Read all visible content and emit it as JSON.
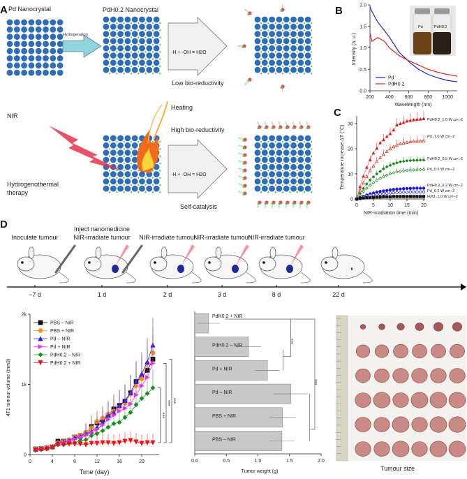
{
  "panels": {
    "a": "A",
    "b": "B",
    "c": "C",
    "d": "D"
  },
  "panel_a": {
    "pd_nanocrystal": "Pd Nanocrystal",
    "pdh_nanocrystal": "PdH0.2 Nanocrystal",
    "hydrogenation": "Hydrogenation",
    "reaction": "·H + ·OH = H2O",
    "low_bio": "Low bio-reductivity",
    "nir": "NIR",
    "heating": "Heating",
    "high_bio": "High bio-reductivity",
    "self_catalysis": "Self-catalysis",
    "therapy_line1": "Hydrogenothermal",
    "therapy_line2": "therapy",
    "colors": {
      "pd_atom": "#2f6db8",
      "h_atom": "#5cc45c",
      "o_atom": "#e2505a",
      "nir": "#e0203c"
    }
  },
  "panel_d": {
    "steps": [
      {
        "label1": "Inoculate tumour",
        "label2": "",
        "day": "−7 d"
      },
      {
        "label1": "Inject nanomedicine",
        "label2": "NIR-irradiate tumour",
        "day": "1 d"
      },
      {
        "label1": "NIR-irradiate tumour",
        "label2": "",
        "day": "2 d"
      },
      {
        "label1": "NIR-irradiate tumour",
        "label2": "",
        "day": "3 d"
      },
      {
        "label1": "NIR-irradiate tumour",
        "label2": "",
        "day": "8 d"
      },
      {
        "label1": "",
        "label2": "",
        "day": "22 d"
      }
    ]
  },
  "photo": {
    "caption": "Tumour size"
  },
  "chart_data": [
    {
      "id": "B",
      "type": "line",
      "xlabel": "Wavelength (nm)",
      "ylabel": "Intensity (a. u.)",
      "xlim": [
        200,
        1100
      ],
      "ylim": [
        0,
        2.0
      ],
      "xticks": [
        "200",
        "400",
        "600",
        "800",
        "1000"
      ],
      "yticks": [
        "0.0",
        "0.5",
        "1.0",
        "1.5",
        "2.0"
      ],
      "legend": "bottom-left",
      "inset_labels": [
        "Pd",
        "PdH0.2"
      ],
      "x": [
        200,
        220,
        280,
        350,
        400,
        500,
        600,
        700,
        800,
        900,
        1000,
        1100
      ],
      "series": [
        {
          "name": "Pd",
          "color": "#2222cc",
          "values": [
            1.95,
            1.85,
            1.6,
            1.4,
            1.25,
            0.9,
            0.68,
            0.5,
            0.38,
            0.3,
            0.24,
            0.21
          ]
        },
        {
          "name": "PdH0.2",
          "color": "#dd2222",
          "values": [
            1.35,
            1.15,
            1.24,
            1.15,
            1.0,
            0.82,
            0.7,
            0.6,
            0.5,
            0.43,
            0.38,
            0.34
          ]
        }
      ]
    },
    {
      "id": "C",
      "type": "scatter",
      "xlabel": "NIR-irradiation time (min)",
      "ylabel": "Temperature increase ΔT (°C)",
      "xlim": [
        0,
        20
      ],
      "ylim": [
        0,
        32
      ],
      "xticks": [
        "0",
        "5",
        "10",
        "15",
        "20"
      ],
      "yticks": [
        "0",
        "10",
        "20",
        "30"
      ],
      "x": [
        0,
        1,
        2,
        3,
        4,
        5,
        6,
        7,
        8,
        9,
        10,
        11,
        12,
        13,
        14,
        15,
        16,
        17,
        18,
        19,
        20
      ],
      "series": [
        {
          "name": "PdH0.2_1.0 W cm−2",
          "color": "#e01818",
          "marker": "triangle",
          "filled": true,
          "values": [
            0,
            4.9,
            9.1,
            12.6,
            15.6,
            18.3,
            20.2,
            22.4,
            23.6,
            24.9,
            26,
            27.5,
            29.5,
            30,
            30.5,
            31,
            31.3,
            31.5,
            31.7,
            31.8,
            32
          ]
        },
        {
          "name": "Pd_1.0 W cm−2",
          "color": "#e01818",
          "marker": "triangle",
          "filled": false,
          "values": [
            0,
            3.5,
            6.5,
            9,
            11.3,
            13.2,
            15,
            16.5,
            17.8,
            19,
            20,
            20.8,
            21.5,
            22,
            22.3,
            22.6,
            22.8,
            23,
            23,
            23.1,
            23.2
          ]
        },
        {
          "name": "PdH0.2_0.5 W cm−2",
          "color": "#118811",
          "marker": "diamond",
          "filled": true,
          "values": [
            0,
            2.2,
            4.2,
            6,
            7.5,
            8.8,
            10,
            11,
            12,
            12.8,
            13.4,
            14,
            14.4,
            14.8,
            15,
            15.2,
            15.3,
            15.4,
            15.4,
            15.5,
            15.5
          ]
        },
        {
          "name": "Pd_0.5 W cm−2",
          "color": "#118811",
          "marker": "diamond",
          "filled": false,
          "values": [
            0,
            1.5,
            3,
            4.3,
            5.5,
            6.5,
            7.4,
            8.2,
            8.9,
            9.5,
            10,
            10.4,
            10.8,
            11,
            11.2,
            11.4,
            11.5,
            11.6,
            11.6,
            11.7,
            11.7
          ]
        },
        {
          "name": "PdH0.2_0.2 W cm−2",
          "color": "#1515dd",
          "marker": "circle",
          "filled": true,
          "values": [
            0,
            0.6,
            1.1,
            1.6,
            2,
            2.4,
            2.7,
            3,
            3.2,
            3.4,
            3.6,
            3.8,
            3.9,
            4,
            4.1,
            4.2,
            4.2,
            4.3,
            4.3,
            4.3,
            4.3
          ]
        },
        {
          "name": "Pd_0.2 W cm−2",
          "color": "#1515dd",
          "marker": "circle",
          "filled": false,
          "values": [
            0,
            0.4,
            0.8,
            1.1,
            1.4,
            1.6,
            1.8,
            2,
            2.1,
            2.3,
            2.4,
            2.5,
            2.6,
            2.6,
            2.7,
            2.7,
            2.8,
            2.8,
            2.8,
            2.8,
            2.8
          ]
        },
        {
          "name": "H2O_1.0 W cm−2",
          "color": "#111111",
          "marker": "square",
          "filled": true,
          "values": [
            0,
            0.2,
            0.4,
            0.5,
            0.6,
            0.7,
            0.8,
            0.8,
            0.9,
            0.9,
            0.9,
            1,
            1,
            1,
            1,
            1,
            1,
            1,
            1,
            1,
            1
          ]
        }
      ]
    },
    {
      "id": "tumour-growth",
      "type": "line",
      "xlabel": "Time (day)",
      "ylabel": "4T1 tumour volume (mm3)",
      "xlim": [
        0,
        23
      ],
      "ylim": [
        0,
        2000
      ],
      "xticks": [
        "0",
        "4",
        "8",
        "12",
        "16",
        "20"
      ],
      "yticks": [
        "0",
        "1k",
        "2k"
      ],
      "legend": "top-left",
      "significance": "***",
      "x": [
        1,
        2,
        3,
        4,
        5,
        6,
        7,
        8,
        9,
        10,
        11,
        12,
        13,
        14,
        15,
        16,
        17,
        18,
        19,
        20,
        21,
        22
      ],
      "series": [
        {
          "name": "PBS – NIR",
          "color": "#111111",
          "marker": "square",
          "values": [
            80,
            85,
            95,
            110,
            190,
            190,
            200,
            250,
            270,
            300,
            400,
            450,
            500,
            560,
            650,
            700,
            760,
            880,
            1040,
            1100,
            1200,
            1360
          ]
        },
        {
          "name": "PBS + NIR",
          "color": "#f39020",
          "marker": "circle",
          "values": [
            80,
            90,
            100,
            115,
            170,
            185,
            210,
            250,
            280,
            320,
            380,
            470,
            520,
            580,
            620,
            680,
            730,
            860,
            980,
            1080,
            1300,
            1450
          ]
        },
        {
          "name": "Pd – NIR",
          "color": "#2020dd",
          "marker": "triangle",
          "values": [
            75,
            85,
            95,
            110,
            160,
            180,
            200,
            240,
            260,
            300,
            330,
            390,
            470,
            560,
            600,
            700,
            770,
            880,
            1040,
            1150,
            1320,
            1560
          ]
        },
        {
          "name": "Pd + NIR",
          "color": "#ee33ee",
          "marker": "triangle-right",
          "values": [
            70,
            80,
            90,
            105,
            150,
            170,
            190,
            220,
            250,
            280,
            320,
            360,
            420,
            500,
            560,
            620,
            660,
            720,
            850,
            980,
            1100,
            1300
          ]
        },
        {
          "name": "PdH0.2 – NIR",
          "color": "#18901f",
          "marker": "diamond",
          "values": [
            60,
            70,
            80,
            100,
            140,
            140,
            160,
            170,
            200,
            210,
            270,
            300,
            340,
            390,
            440,
            460,
            530,
            600,
            710,
            800,
            870,
            950
          ]
        },
        {
          "name": "PdH0.2 + NIR",
          "color": "#ee1111",
          "marker": "triangle-down",
          "values": [
            60,
            70,
            80,
            100,
            140,
            140,
            150,
            150,
            150,
            140,
            160,
            160,
            170,
            170,
            160,
            170,
            190,
            200,
            180,
            160,
            170,
            170
          ]
        }
      ]
    },
    {
      "id": "tumour-weight",
      "type": "bar",
      "orientation": "horizontal",
      "xlabel": "Tumor weight (g)",
      "xlim": [
        0,
        2.0
      ],
      "xticks": [
        "0.0",
        "0.5",
        "1.0",
        "1.5",
        "2.0"
      ],
      "significance": "***",
      "categories": [
        "PdH0.2 + NIR",
        "PdH0.2 – NIR",
        "Pd + NIR",
        "Pd – NIR",
        "PBS + NIR",
        "PBS – NIR"
      ],
      "values": [
        0.22,
        0.85,
        1.15,
        1.52,
        1.39,
        1.38
      ],
      "errors": [
        0.18,
        0.2,
        0.2,
        0.27,
        0.21,
        0.2
      ],
      "color": "#c8c8c8"
    }
  ]
}
